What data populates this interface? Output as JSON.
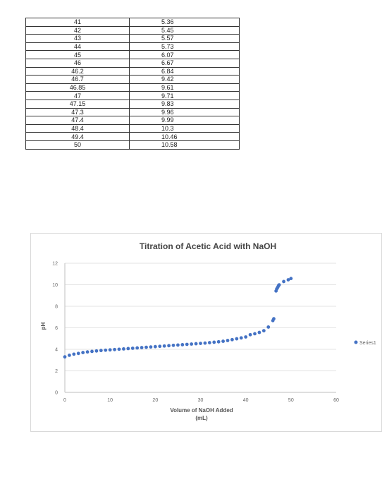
{
  "table": {
    "rows": [
      [
        "41",
        "5.36"
      ],
      [
        "42",
        "5.45"
      ],
      [
        "43",
        "5.57"
      ],
      [
        "44",
        "5.73"
      ],
      [
        "45",
        "6.07"
      ],
      [
        "46",
        "6.67"
      ],
      [
        "46.2",
        "6.84"
      ],
      [
        "46.7",
        "9.42"
      ],
      [
        "46.85",
        "9.61"
      ],
      [
        "47",
        "9.71"
      ],
      [
        "47.15",
        "9.83"
      ],
      [
        "47.3",
        "9.96"
      ],
      [
        "47.4",
        "9.99"
      ],
      [
        "48.4",
        "10.3"
      ],
      [
        "49.4",
        "10.46"
      ],
      [
        "50",
        "10.58"
      ]
    ]
  },
  "chart_data": {
    "type": "scatter",
    "title": "Titration of Acetic Acid with NaOH",
    "xlabel_lines": [
      "Volume of NaOH Added",
      "(mL)"
    ],
    "ylabel": "pH",
    "xlim": [
      0,
      60
    ],
    "ylim": [
      0,
      12
    ],
    "x_ticks": [
      0,
      10,
      20,
      30,
      40,
      50,
      60
    ],
    "y_ticks": [
      0,
      2,
      4,
      6,
      8,
      10,
      12
    ],
    "grid": "horizontal",
    "legend": "right",
    "color": "#4472c4",
    "series": [
      {
        "name": "Series1",
        "x": [
          0,
          1,
          2,
          3,
          4,
          5,
          6,
          7,
          8,
          9,
          10,
          11,
          12,
          13,
          14,
          15,
          16,
          17,
          18,
          19,
          20,
          21,
          22,
          23,
          24,
          25,
          26,
          27,
          28,
          29,
          30,
          31,
          32,
          33,
          34,
          35,
          36,
          37,
          38,
          39,
          40,
          41,
          42,
          43,
          44,
          45,
          46,
          46.2,
          46.7,
          46.85,
          47,
          47.15,
          47.3,
          47.4,
          48.4,
          49.4,
          50
        ],
        "y": [
          3.3,
          3.45,
          3.55,
          3.62,
          3.7,
          3.76,
          3.81,
          3.85,
          3.89,
          3.92,
          3.95,
          3.98,
          4.01,
          4.04,
          4.07,
          4.1,
          4.13,
          4.16,
          4.19,
          4.22,
          4.25,
          4.28,
          4.31,
          4.34,
          4.37,
          4.4,
          4.43,
          4.46,
          4.49,
          4.52,
          4.55,
          4.58,
          4.62,
          4.66,
          4.7,
          4.75,
          4.82,
          4.9,
          4.98,
          5.06,
          5.15,
          5.36,
          5.45,
          5.57,
          5.73,
          6.07,
          6.67,
          6.84,
          9.42,
          9.61,
          9.71,
          9.83,
          9.96,
          9.99,
          10.3,
          10.46,
          10.58
        ]
      }
    ]
  }
}
